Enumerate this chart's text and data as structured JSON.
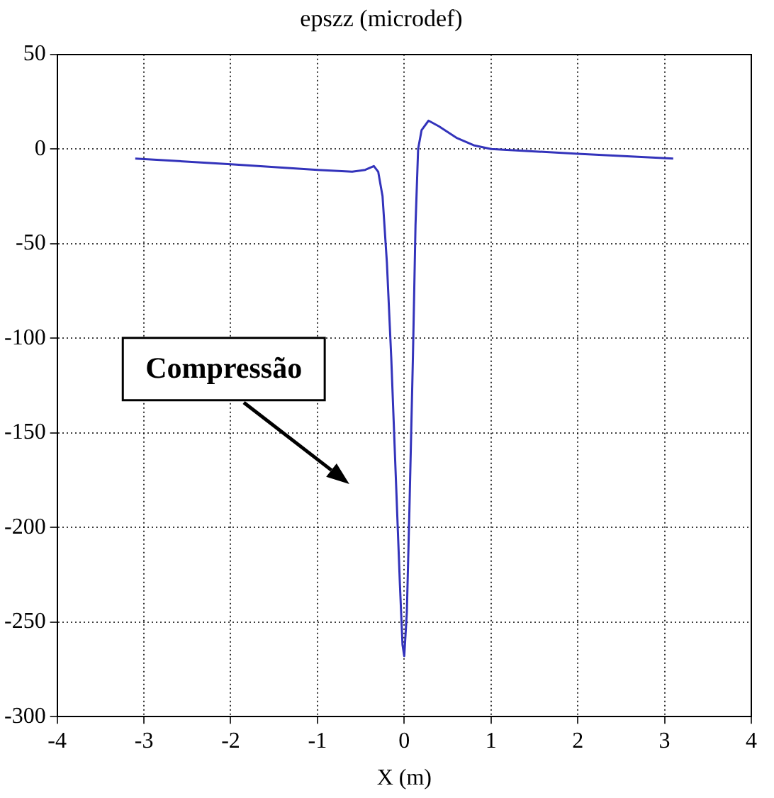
{
  "chart_data": {
    "type": "line",
    "title": "epszz (microdef)",
    "xlabel": "X (m)",
    "x": [
      -3.1,
      -2,
      -1,
      -0.6,
      -0.45,
      -0.35,
      -0.3,
      -0.25,
      -0.2,
      -0.15,
      -0.1,
      -0.05,
      -0.02,
      0,
      0.03,
      0.06,
      0.1,
      0.13,
      0.16,
      0.2,
      0.28,
      0.4,
      0.6,
      0.8,
      1,
      2,
      3.1
    ],
    "series": [
      {
        "color": "#3333bb",
        "values": [
          -5,
          -8,
          -11,
          -12,
          -11,
          -9,
          -12,
          -25,
          -60,
          -110,
          -170,
          -230,
          -262,
          -268,
          -245,
          -190,
          -110,
          -40,
          0,
          10,
          15,
          12,
          6,
          2,
          0,
          -2.5,
          -5
        ]
      }
    ],
    "xlim": [
      -4,
      4
    ],
    "xticks": [
      -4,
      -3,
      -2,
      -1,
      0,
      1,
      2,
      3,
      4
    ],
    "ylim": [
      -300,
      50
    ],
    "yticks": [
      -300,
      -250,
      -200,
      -150,
      -100,
      -50,
      0,
      50
    ],
    "grid": true,
    "line_style": "solid",
    "marker": "none",
    "annotations": [
      "Compressão"
    ]
  }
}
